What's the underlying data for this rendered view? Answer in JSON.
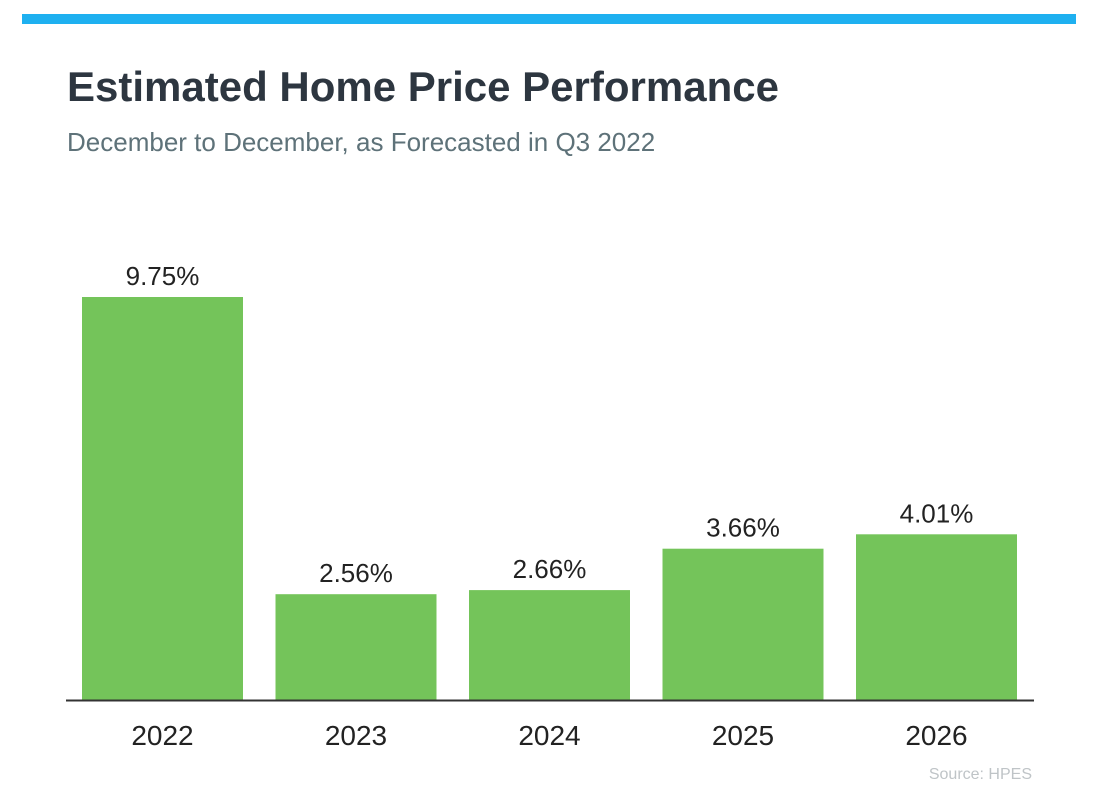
{
  "header": {
    "title": "Estimated Home Price Performance",
    "subtitle": "December to December, as Forecasted in Q3 2022"
  },
  "footer": {
    "source": "Source: HPES"
  },
  "colors": {
    "accent_bar": "#1eb0f0",
    "bar_fill": "#74c45a",
    "axis_line": "#333333",
    "label_text": "#222222"
  },
  "chart_data": {
    "type": "bar",
    "categories": [
      "2022",
      "2023",
      "2024",
      "2025",
      "2026"
    ],
    "values": [
      9.75,
      2.56,
      2.66,
      3.66,
      4.01
    ],
    "data_labels": [
      "9.75%",
      "2.56%",
      "2.66%",
      "3.66%",
      "4.01%"
    ],
    "title": "Estimated Home Price Performance",
    "subtitle": "December to December, as Forecasted in Q3 2022",
    "xlabel": "",
    "ylabel": "",
    "ylim": [
      0,
      9.75
    ],
    "grid": false,
    "legend": "none"
  }
}
